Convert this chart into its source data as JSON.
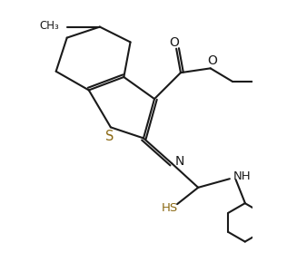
{
  "bg_color": "#ffffff",
  "bond_color": "#1a1a1a",
  "s_color": "#8B6914",
  "lw": 1.5,
  "dbl_off": 0.055,
  "xlim": [
    -0.2,
    4.8
  ],
  "ylim": [
    -3.6,
    2.6
  ]
}
